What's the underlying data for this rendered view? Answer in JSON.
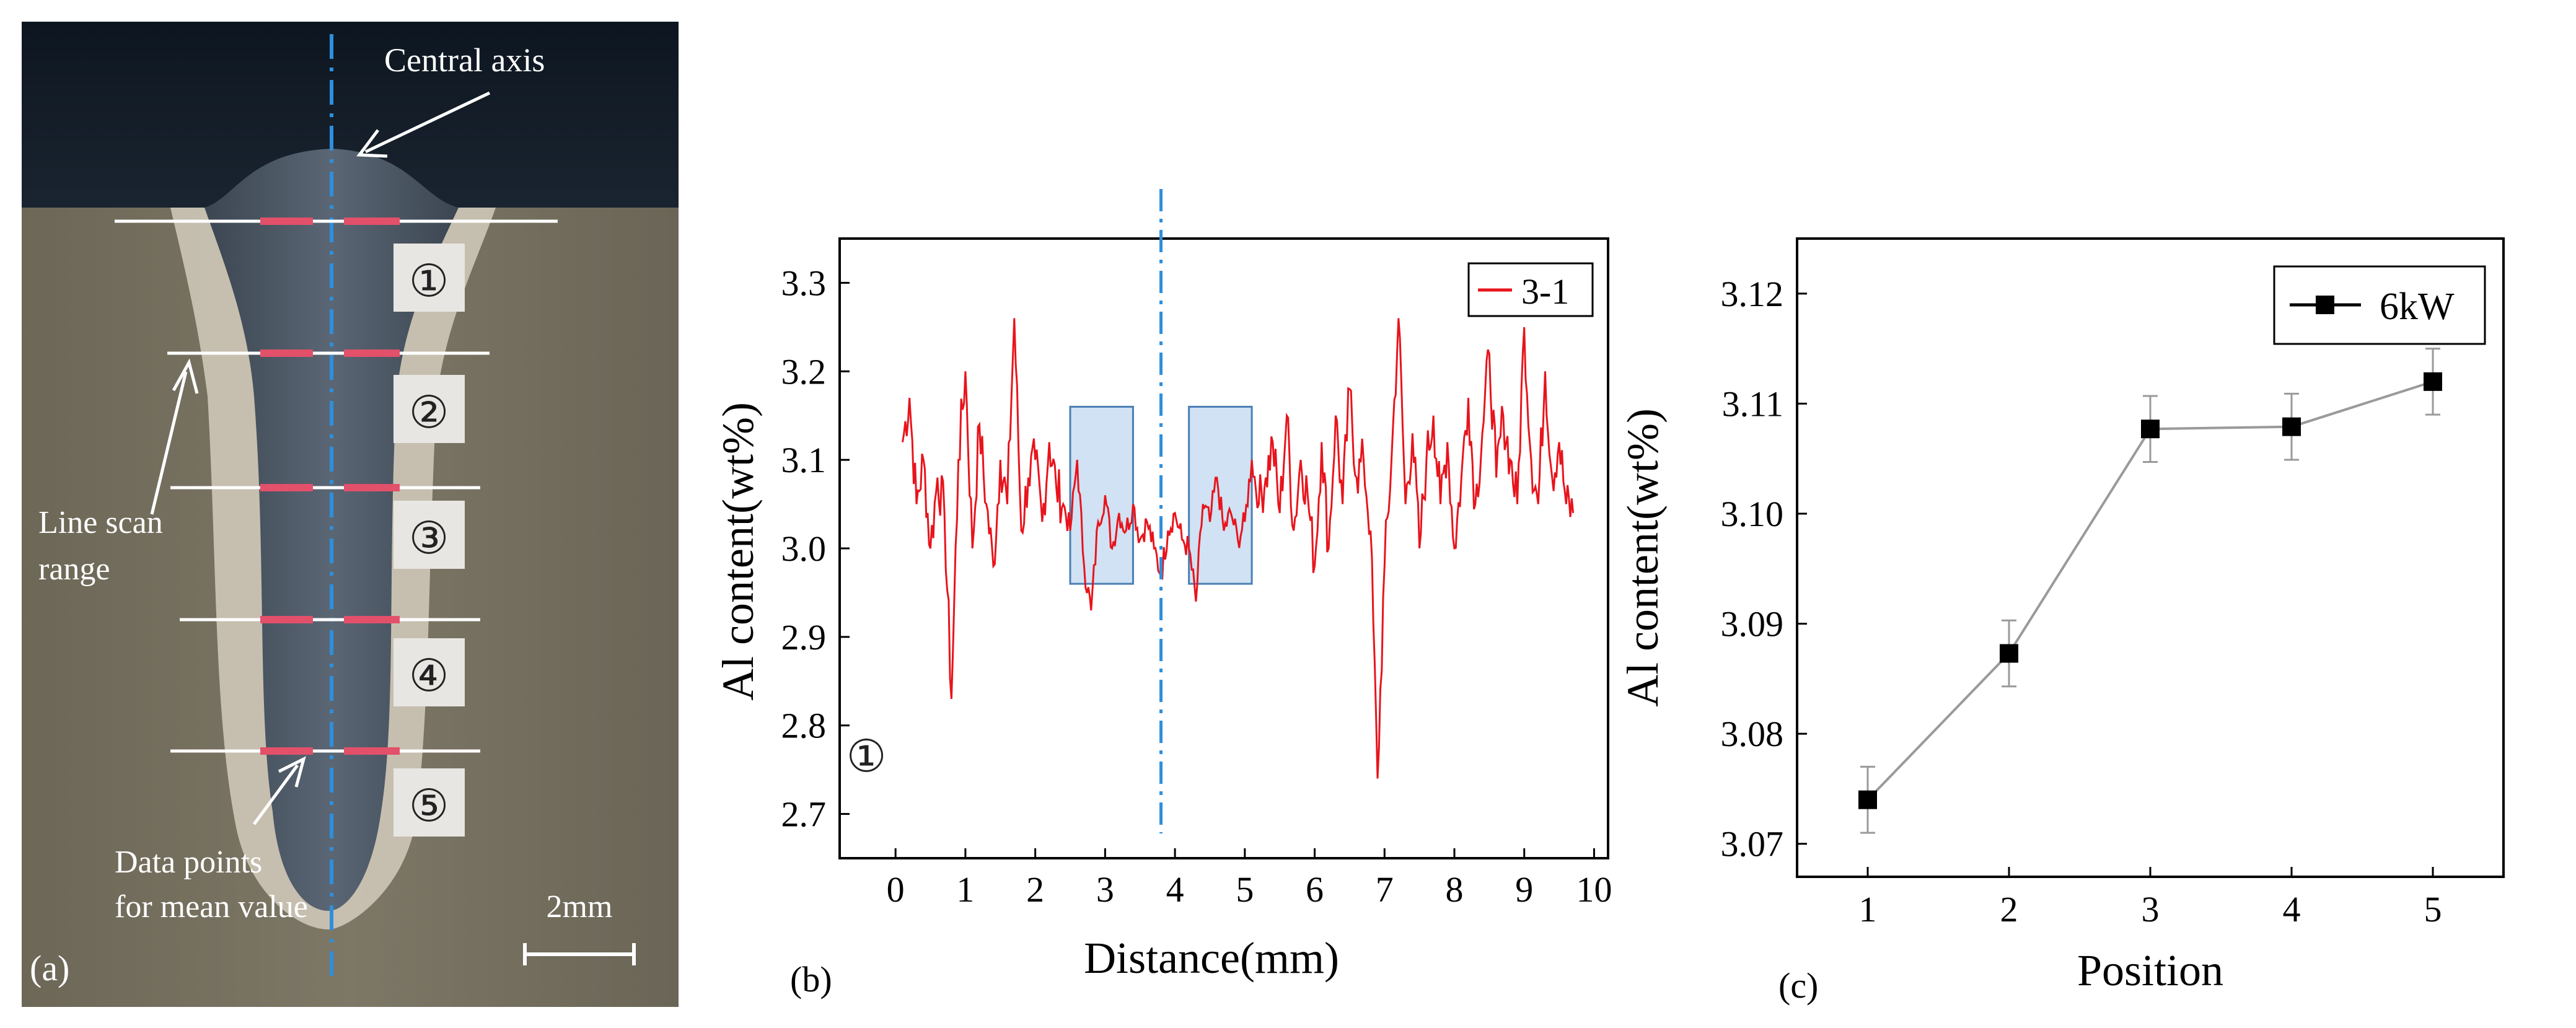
{
  "panel_a": {
    "label": "(a)",
    "central_axis_label": "Central axis",
    "line_scan_label_1": "Line scan",
    "line_scan_label_2": "range",
    "data_points_label_1": "Data points",
    "data_points_label_2": "for mean value",
    "scale_bar_label": "2mm",
    "positions": [
      "①",
      "②",
      "③",
      "④",
      "⑤"
    ],
    "colors": {
      "background": "#3a3f45",
      "melt_pool": "#4f5a66",
      "haz": "#d8d2c4",
      "line": "#ffffff",
      "marker": "#e2506a",
      "axis": "#2f8fdc"
    }
  },
  "panel_b": {
    "label": "(b)",
    "marker_label": "①",
    "color": "#e8141c",
    "box_color": "#a9cbe9",
    "axis_line_color": "#2f8fdc"
  },
  "panel_c": {
    "label": "(c)",
    "color": "#9a9a9a"
  },
  "chart_data": [
    {
      "type": "line",
      "panel": "b",
      "title": "",
      "xlabel": "Distance(mm)",
      "ylabel": "Al content(wt%)",
      "xlim": [
        -0.8,
        10.2
      ],
      "ylim": [
        2.65,
        3.35
      ],
      "xticks": [
        0,
        1,
        2,
        3,
        4,
        5,
        6,
        7,
        8,
        9,
        10
      ],
      "yticks": [
        2.7,
        2.8,
        2.9,
        3.0,
        3.1,
        3.2,
        3.3
      ],
      "ytick_labels": [
        "2.7",
        "2.8",
        "2.9",
        "3.0",
        "3.1",
        "3.2",
        "3.3"
      ],
      "legend": "top-right",
      "series": [
        {
          "name": "3-1",
          "x": [
            0.1,
            0.2,
            0.3,
            0.4,
            0.5,
            0.6,
            0.7,
            0.8,
            0.9,
            1.0,
            1.1,
            1.2,
            1.3,
            1.4,
            1.5,
            1.6,
            1.7,
            1.8,
            1.9,
            2.0,
            2.1,
            2.2,
            2.3,
            2.4,
            2.5,
            2.6,
            2.7,
            2.8,
            2.9,
            3.0,
            3.1,
            3.2,
            3.3,
            3.4,
            3.5,
            3.6,
            3.7,
            3.8,
            3.9,
            4.0,
            4.1,
            4.2,
            4.3,
            4.4,
            4.5,
            4.6,
            4.7,
            4.8,
            4.9,
            5.0,
            5.1,
            5.2,
            5.3,
            5.4,
            5.5,
            5.6,
            5.7,
            5.8,
            5.9,
            6.0,
            6.1,
            6.2,
            6.3,
            6.4,
            6.5,
            6.6,
            6.7,
            6.8,
            6.9,
            7.0,
            7.1,
            7.2,
            7.3,
            7.4,
            7.5,
            7.6,
            7.7,
            7.8,
            7.9,
            8.0,
            8.1,
            8.2,
            8.3,
            8.4,
            8.5,
            8.6,
            8.7,
            8.8,
            8.9,
            9.0,
            9.1,
            9.2,
            9.3,
            9.4,
            9.5,
            9.6,
            9.7
          ],
          "y": [
            3.12,
            3.17,
            3.05,
            3.1,
            3.0,
            3.08,
            3.04,
            2.83,
            3.1,
            3.2,
            3.0,
            3.14,
            3.05,
            2.98,
            3.1,
            3.05,
            3.26,
            3.02,
            3.08,
            3.1,
            3.03,
            3.12,
            3.07,
            3.05,
            3.02,
            3.1,
            2.98,
            2.93,
            3.03,
            3.06,
            3.0,
            3.04,
            3.02,
            3.05,
            3.01,
            3.03,
            3.0,
            2.97,
            3.02,
            3.04,
            3.01,
            3.0,
            2.94,
            3.05,
            3.03,
            3.08,
            3.02,
            3.04,
            3.01,
            3.03,
            3.1,
            3.05,
            3.08,
            3.12,
            3.04,
            3.15,
            3.02,
            3.1,
            3.06,
            2.98,
            3.12,
            3.0,
            3.15,
            3.05,
            3.18,
            3.08,
            3.1,
            3.02,
            2.74,
            2.98,
            3.1,
            3.26,
            3.05,
            3.13,
            3.0,
            3.1,
            3.15,
            3.05,
            3.12,
            3.0,
            3.08,
            3.17,
            3.05,
            3.13,
            3.22,
            3.08,
            3.15,
            3.1,
            3.05,
            3.25,
            3.1,
            3.05,
            3.2,
            3.08,
            3.12,
            3.05,
            3.04
          ]
        }
      ],
      "annotations": [
        {
          "type": "box",
          "x0": 2.5,
          "x1": 3.4,
          "y0": 2.96,
          "y1": 3.16
        },
        {
          "type": "box",
          "x0": 4.2,
          "x1": 5.1,
          "y0": 2.96,
          "y1": 3.16
        },
        {
          "type": "vline",
          "x": 3.8
        }
      ]
    },
    {
      "type": "line",
      "panel": "c",
      "title": "",
      "xlabel": "Position",
      "ylabel": "Al content(wt%)",
      "xlim": [
        0.5,
        5.5
      ],
      "ylim": [
        3.067,
        3.125
      ],
      "xticks": [
        1,
        2,
        3,
        4,
        5
      ],
      "yticks": [
        3.07,
        3.08,
        3.09,
        3.1,
        3.11,
        3.12
      ],
      "ytick_labels": [
        "3.07",
        "3.08",
        "3.09",
        "3.10",
        "3.11",
        "3.12"
      ],
      "legend": "top-right",
      "series": [
        {
          "name": "6kW",
          "x": [
            1,
            2,
            3,
            4,
            5
          ],
          "y": [
            3.074,
            3.0873,
            3.1077,
            3.1079,
            3.112
          ],
          "err": [
            0.003,
            0.003,
            0.003,
            0.003,
            0.003
          ]
        }
      ]
    }
  ]
}
